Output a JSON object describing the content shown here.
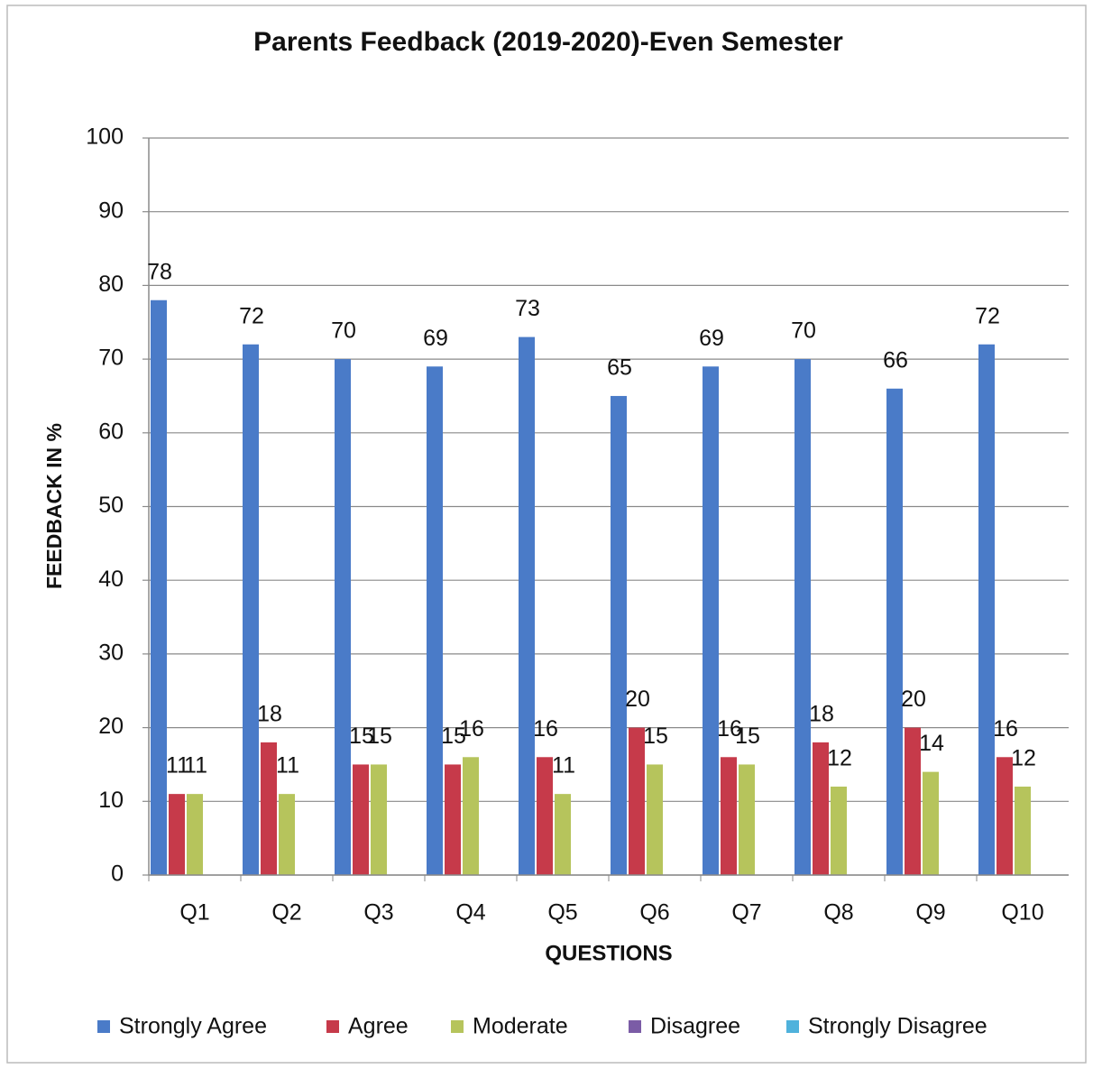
{
  "chart_data": {
    "type": "bar",
    "title": "Parents Feedback (2019-2020)-Even Semester",
    "x_label": "QUESTIONS",
    "y_label": "FEEDBACK IN %",
    "categories": [
      "Q1",
      "Q2",
      "Q3",
      "Q4",
      "Q5",
      "Q6",
      "Q7",
      "Q8",
      "Q9",
      "Q10"
    ],
    "series": [
      {
        "name": "Strongly Agree",
        "color": "#4a7bc8",
        "data_labels": true,
        "values": [
          78,
          72,
          70,
          69,
          73,
          65,
          69,
          70,
          66,
          72
        ]
      },
      {
        "name": "Agree",
        "color": "#c63a4a",
        "data_labels": true,
        "values": [
          11,
          18,
          15,
          15,
          16,
          20,
          16,
          18,
          20,
          16
        ]
      },
      {
        "name": "Moderate",
        "color": "#b6c45c",
        "data_labels": true,
        "values": [
          11,
          11,
          15,
          16,
          11,
          15,
          15,
          12,
          14,
          12
        ]
      },
      {
        "name": "Disagree",
        "color": "#7b5ca6",
        "data_labels": false,
        "values": [
          0,
          0,
          0,
          0,
          0,
          0,
          0,
          0,
          0,
          0
        ]
      },
      {
        "name": "Strongly Disagree",
        "color": "#4fb2dc",
        "data_labels": false,
        "values": [
          0,
          0,
          0,
          0,
          0,
          0,
          0,
          0,
          0,
          0
        ]
      }
    ],
    "ylim": [
      0,
      100
    ],
    "yticks": [
      0,
      10,
      20,
      30,
      40,
      50,
      60,
      70,
      80,
      90,
      100
    ],
    "grid": true,
    "legend": "bottom"
  }
}
